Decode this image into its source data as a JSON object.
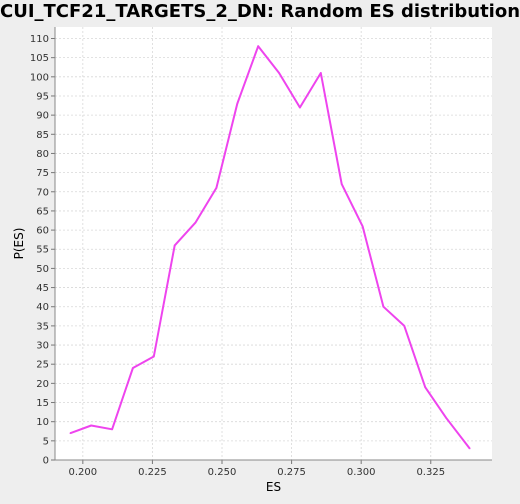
{
  "chart_data": {
    "type": "line",
    "title": "CUI_TCF21_TARGETS_2_DN: Random ES distribution",
    "xlabel": "ES",
    "ylabel": "P(ES)",
    "xlim": [
      0.19,
      0.347
    ],
    "ylim": [
      0,
      113
    ],
    "x_ticks": [
      0.2,
      0.225,
      0.25,
      0.275,
      0.3,
      0.325
    ],
    "x_tick_labels": [
      "0.200",
      "0.225",
      "0.250",
      "0.275",
      "0.300",
      "0.325"
    ],
    "y_ticks": [
      0,
      5,
      10,
      15,
      20,
      25,
      30,
      35,
      40,
      45,
      50,
      55,
      60,
      65,
      70,
      75,
      80,
      85,
      90,
      95,
      100,
      105,
      110
    ],
    "y_tick_labels": [
      "0",
      "5",
      "10",
      "15",
      "20",
      "25",
      "30",
      "35",
      "40",
      "45",
      "50",
      "55",
      "60",
      "65",
      "70",
      "75",
      "80",
      "85",
      "90",
      "95",
      "100",
      "105",
      "110"
    ],
    "grid": true,
    "legend": "none",
    "series": [
      {
        "color": "#ee44ee",
        "x": [
          0.1955,
          0.203,
          0.2105,
          0.218,
          0.2255,
          0.233,
          0.2405,
          0.248,
          0.2555,
          0.263,
          0.2705,
          0.278,
          0.2855,
          0.293,
          0.3005,
          0.308,
          0.3155,
          0.323,
          0.3305,
          0.339
        ],
        "y": [
          7,
          9,
          8,
          24,
          27,
          56,
          62,
          71,
          93,
          108,
          101,
          92,
          101,
          72,
          61,
          40,
          35,
          19,
          11,
          3
        ]
      }
    ]
  }
}
